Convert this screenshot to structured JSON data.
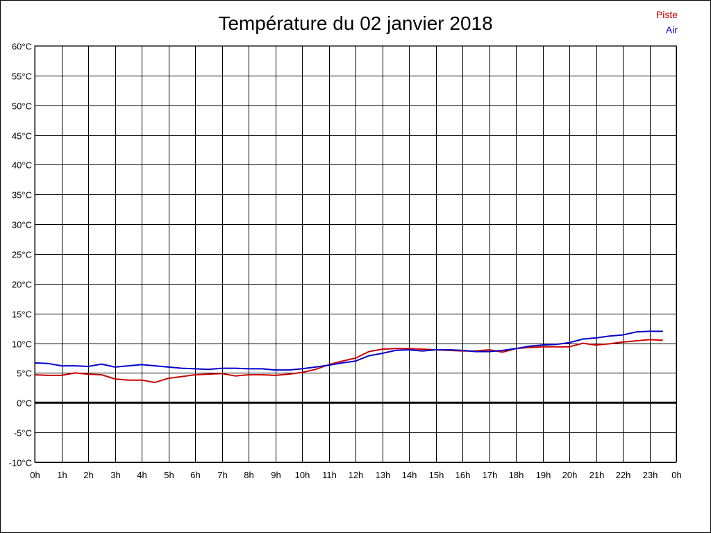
{
  "chart_data": {
    "type": "line",
    "title": "Température du 02 janvier 2018",
    "xlabel": "",
    "ylabel": "",
    "x_tick_labels": [
      "0h",
      "1h",
      "2h",
      "3h",
      "4h",
      "5h",
      "6h",
      "7h",
      "8h",
      "9h",
      "10h",
      "11h",
      "12h",
      "13h",
      "14h",
      "15h",
      "16h",
      "17h",
      "18h",
      "19h",
      "20h",
      "21h",
      "22h",
      "23h",
      "0h"
    ],
    "y_tick_labels": [
      "60°C",
      "55°C",
      "50°C",
      "45°C",
      "40°C",
      "35°C",
      "30°C",
      "25°C",
      "20°C",
      "15°C",
      "10°C",
      "5°C",
      "0°C",
      "-5°C",
      "-10°C"
    ],
    "xlim": [
      0,
      24
    ],
    "ylim": [
      -10,
      60
    ],
    "grid": true,
    "legend_position": "top-right",
    "x": [
      0,
      0.5,
      1,
      1.5,
      2,
      2.5,
      3,
      3.5,
      4,
      4.5,
      5,
      5.5,
      6,
      6.5,
      7,
      7.5,
      8,
      8.5,
      9,
      9.5,
      10,
      10.5,
      11,
      11.5,
      12,
      12.5,
      13,
      13.5,
      14,
      14.5,
      15,
      15.5,
      16,
      16.5,
      17,
      17.5,
      18,
      18.5,
      19,
      19.5,
      20,
      20.5,
      21,
      21.5,
      22,
      22.5,
      23,
      23.5
    ],
    "series": [
      {
        "name": "Piste",
        "color": "#cc0000",
        "values": [
          4.7,
          4.6,
          4.6,
          5.0,
          4.8,
          4.7,
          4.0,
          3.8,
          3.8,
          3.4,
          4.1,
          4.4,
          4.7,
          4.8,
          4.9,
          4.5,
          4.7,
          4.7,
          4.6,
          4.8,
          5.1,
          5.6,
          6.4,
          7.0,
          7.5,
          8.6,
          9.0,
          9.1,
          9.1,
          9.0,
          8.9,
          8.8,
          8.7,
          8.7,
          8.9,
          8.5,
          9.1,
          9.3,
          9.4,
          9.4,
          9.4,
          10.0,
          9.7,
          9.9,
          10.2,
          10.4,
          10.6,
          10.5
        ]
      },
      {
        "name": "Air",
        "color": "#0000cc",
        "values": [
          6.7,
          6.6,
          6.2,
          6.2,
          6.1,
          6.5,
          6.0,
          6.2,
          6.4,
          6.2,
          6.0,
          5.8,
          5.7,
          5.6,
          5.8,
          5.8,
          5.7,
          5.7,
          5.5,
          5.5,
          5.7,
          6.0,
          6.3,
          6.7,
          7.0,
          7.9,
          8.3,
          8.8,
          8.9,
          8.7,
          8.9,
          8.9,
          8.8,
          8.6,
          8.6,
          8.8,
          9.1,
          9.5,
          9.7,
          9.8,
          10.1,
          10.7,
          10.9,
          11.2,
          11.4,
          11.9,
          12.0,
          12.0
        ]
      }
    ],
    "zero_line": {
      "value": 0,
      "color": "#000000"
    }
  }
}
